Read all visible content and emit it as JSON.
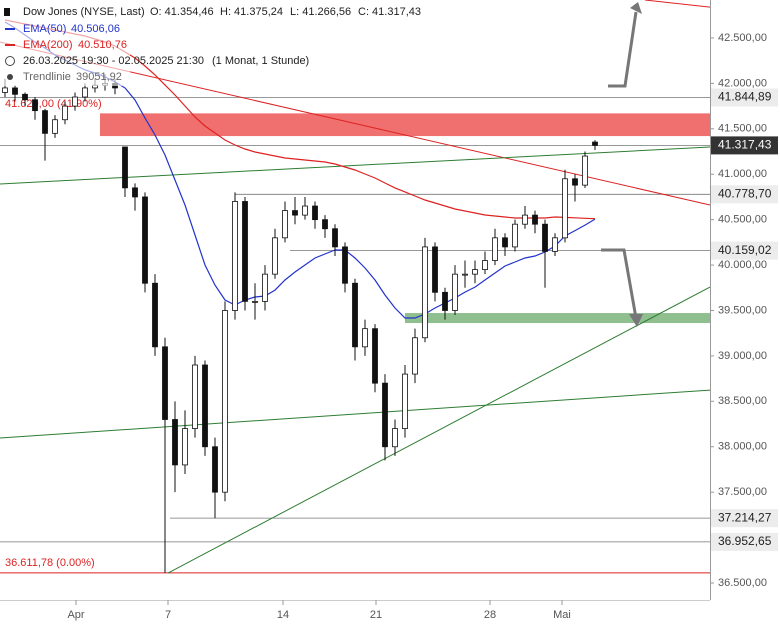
{
  "chart_data": {
    "type": "candlestick",
    "legend": {
      "title": "Dow Jones (NYSE, Last)",
      "open": "O: 41.354,46",
      "high": "H: 41.375,24",
      "low": "L: 41.266,56",
      "close": "C: 41.317,43",
      "ema50_name": "EMA(50)",
      "ema50_value": "40.506,06",
      "ema200_name": "EMA(200)",
      "ema200_value": "40.510,76",
      "range": "26.03.2025 19:30 - 02.05.2025 21:30",
      "interval": "(1 Monat, 1 Stunde)",
      "trend_name": "Trendlinie",
      "trend_value": "39051,92"
    },
    "xlim": [
      -0.5,
      70.5
    ],
    "ylim": [
      36313,
      42918
    ],
    "xticks": [
      {
        "value": 7.1,
        "label": "Apr"
      },
      {
        "value": 16.3,
        "label": "7"
      },
      {
        "value": 27.8,
        "label": "14"
      },
      {
        "value": 37.1,
        "label": "21"
      },
      {
        "value": 48.5,
        "label": "28"
      },
      {
        "value": 55.7,
        "label": "Mai"
      }
    ],
    "yticks": [
      {
        "value": 36500,
        "label": "36.500,00"
      },
      {
        "value": 37000,
        "label": "37.000,00"
      },
      {
        "value": 37500,
        "label": "37.500,00"
      },
      {
        "value": 38000,
        "label": "38.000,00"
      },
      {
        "value": 38500,
        "label": "38.500,00"
      },
      {
        "value": 39000,
        "label": "39.000,00"
      },
      {
        "value": 39500,
        "label": "39.500,00"
      },
      {
        "value": 40000,
        "label": "40.000,00"
      },
      {
        "value": 40500,
        "label": "40.500,00"
      },
      {
        "value": 41000,
        "label": "41.000,00"
      },
      {
        "value": 41500,
        "label": "41.500,00"
      },
      {
        "value": 42000,
        "label": "42.000,00"
      },
      {
        "value": 42500,
        "label": "42.500,00"
      }
    ],
    "up_color": "#ffffff",
    "down_color": "#111111",
    "candles": [
      [
        41900,
        42050,
        41850,
        41950
      ],
      [
        41950,
        41980,
        41800,
        41880
      ],
      [
        41880,
        41900,
        41750,
        41820
      ],
      [
        41820,
        41850,
        41600,
        41700
      ],
      [
        41700,
        41720,
        41150,
        41450
      ],
      [
        41450,
        41650,
        41400,
        41600
      ],
      [
        41600,
        41800,
        41550,
        41750
      ],
      [
        41750,
        41900,
        41700,
        41850
      ],
      [
        41850,
        42000,
        41800,
        41950
      ],
      [
        41950,
        42050,
        41900,
        41980
      ],
      [
        41980,
        42100,
        41920,
        42000
      ],
      [
        42000,
        42050,
        41880,
        41950
      ],
      [
        41300,
        41300,
        40750,
        40850
      ],
      [
        40850,
        40900,
        40600,
        40750
      ],
      [
        40750,
        40800,
        39700,
        39800
      ],
      [
        39800,
        39900,
        39000,
        39100
      ],
      [
        39100,
        39200,
        36612,
        38300
      ],
      [
        38300,
        38500,
        37500,
        37800
      ],
      [
        37800,
        38400,
        37700,
        38200
      ],
      [
        38200,
        39000,
        38100,
        38900
      ],
      [
        38900,
        38950,
        37900,
        38000
      ],
      [
        38000,
        38100,
        37214,
        37500
      ],
      [
        37500,
        39600,
        37400,
        39500
      ],
      [
        39500,
        40800,
        39400,
        40700
      ],
      [
        40700,
        40750,
        39500,
        39600
      ],
      [
        39600,
        39800,
        39400,
        39600
      ],
      [
        39600,
        40000,
        39500,
        39900
      ],
      [
        39900,
        40400,
        39850,
        40300
      ],
      [
        40300,
        40700,
        40250,
        40600
      ],
      [
        40600,
        40750,
        40450,
        40550
      ],
      [
        40550,
        40750,
        40500,
        40650
      ],
      [
        40650,
        40700,
        40400,
        40500
      ],
      [
        40500,
        40550,
        40300,
        40400
      ],
      [
        40400,
        40450,
        40100,
        40200
      ],
      [
        40200,
        40250,
        39700,
        39800
      ],
      [
        39800,
        39850,
        38950,
        39100
      ],
      [
        39100,
        39400,
        39000,
        39300
      ],
      [
        39300,
        39350,
        38600,
        38700
      ],
      [
        38700,
        38800,
        37850,
        38000
      ],
      [
        38000,
        38300,
        37900,
        38200
      ],
      [
        38200,
        38900,
        38100,
        38800
      ],
      [
        38800,
        39300,
        38700,
        39200
      ],
      [
        39200,
        40300,
        39150,
        40200
      ],
      [
        40200,
        40250,
        39600,
        39700
      ],
      [
        39700,
        39750,
        39400,
        39500
      ],
      [
        39500,
        40000,
        39450,
        39900
      ],
      [
        39900,
        40050,
        39750,
        39900
      ],
      [
        39900,
        40050,
        39800,
        39950
      ],
      [
        39950,
        40150,
        39900,
        40050
      ],
      [
        40050,
        40400,
        40000,
        40300
      ],
      [
        40300,
        40350,
        40100,
        40200
      ],
      [
        40200,
        40500,
        40150,
        40450
      ],
      [
        40450,
        40650,
        40400,
        40550
      ],
      [
        40550,
        40600,
        40350,
        40450
      ],
      [
        40450,
        40500,
        39750,
        40150
      ],
      [
        40150,
        40350,
        40100,
        40300
      ],
      [
        40300,
        41050,
        40250,
        40950
      ],
      [
        40950,
        41000,
        40700,
        40880
      ],
      [
        40880,
        41250,
        40850,
        41200
      ],
      [
        41354,
        41375,
        41267,
        41317
      ]
    ],
    "series": [
      {
        "name": "EMA(50)",
        "color": "#2233cc",
        "values": [
          42676,
          42610,
          42533,
          42456,
          42390,
          42313,
          42258,
          42203,
          42148,
          42115,
          42071,
          42016,
          41950,
          41817,
          41619,
          41432,
          41212,
          40937,
          40661,
          40331,
          40001,
          39780,
          39615,
          39560,
          39615,
          39648,
          39659,
          39725,
          39836,
          39924,
          40001,
          40078,
          40122,
          40166,
          40166,
          40078,
          39968,
          39836,
          39670,
          39527,
          39417,
          39417,
          39461,
          39527,
          39582,
          39637,
          39703,
          39758,
          39836,
          39913,
          39990,
          40034,
          40078,
          40100,
          40144,
          40210,
          40320,
          40380,
          40440,
          40506
        ]
      },
      {
        "name": "EMA(200)",
        "color": "#dd2222",
        "values": [
          42698,
          42676,
          42654,
          42632,
          42610,
          42588,
          42566,
          42544,
          42522,
          42489,
          42456,
          42412,
          42346,
          42280,
          42192,
          42093,
          41983,
          41872,
          41751,
          41630,
          41531,
          41454,
          41377,
          41322,
          41278,
          41245,
          41223,
          41201,
          41179,
          41168,
          41157,
          41146,
          41135,
          41113,
          41080,
          41047,
          41003,
          40959,
          40904,
          40849,
          40805,
          40760,
          40716,
          40683,
          40650,
          40617,
          40595,
          40573,
          40551,
          40540,
          40529,
          40518,
          40518,
          40518,
          40518,
          40529,
          40525,
          40520,
          40515,
          40511
        ]
      }
    ],
    "trendlines": [
      {
        "color": "#dd2222",
        "x": [
          -0.5,
          70.5
        ],
        "y": [
          42456,
          40661
        ]
      },
      {
        "color": "#dd2222",
        "x": [
          64.0,
          70.5
        ],
        "y": [
          42918,
          42840
        ]
      },
      {
        "color": "#2e7d32",
        "x": [
          -0.5,
          70.5
        ],
        "y": [
          40893,
          41300
        ]
      },
      {
        "color": "#2e7d32",
        "x": [
          -0.5,
          70.5
        ],
        "y": [
          38096,
          38624
        ]
      },
      {
        "color": "#2e7d32",
        "x": [
          16.3,
          70.5
        ],
        "y": [
          36610,
          39758
        ]
      }
    ],
    "zones": [
      {
        "color": "#f07070",
        "start": 9.5,
        "range": [
          41420,
          41670
        ]
      },
      {
        "color": "#8fbf8f",
        "start": 40.0,
        "range": [
          39362,
          39472
        ]
      }
    ],
    "levels": [
      {
        "value": 41844.89,
        "label": "41.844,89",
        "start": -0.5
      },
      {
        "value": 41317.43,
        "label": "41.317,43",
        "start": -0.5,
        "current": true
      },
      {
        "value": 40778.7,
        "label": "40.778,70",
        "start": 23.0
      },
      {
        "value": 40159.02,
        "label": "40.159,02",
        "start": 28.5
      },
      {
        "value": 37214.27,
        "label": "37.214,27",
        "start": 16.5
      },
      {
        "value": 36952.65,
        "label": "36.952,65",
        "start": -0.5
      }
    ],
    "annotations": [
      {
        "text": "41.620,00 (41.90%)",
        "value": 41620,
        "color": "#dd2222"
      },
      {
        "text": "36.611,78 (0.00%)",
        "value": 36611.78,
        "color": "#dd2222",
        "line": true
      }
    ]
  }
}
